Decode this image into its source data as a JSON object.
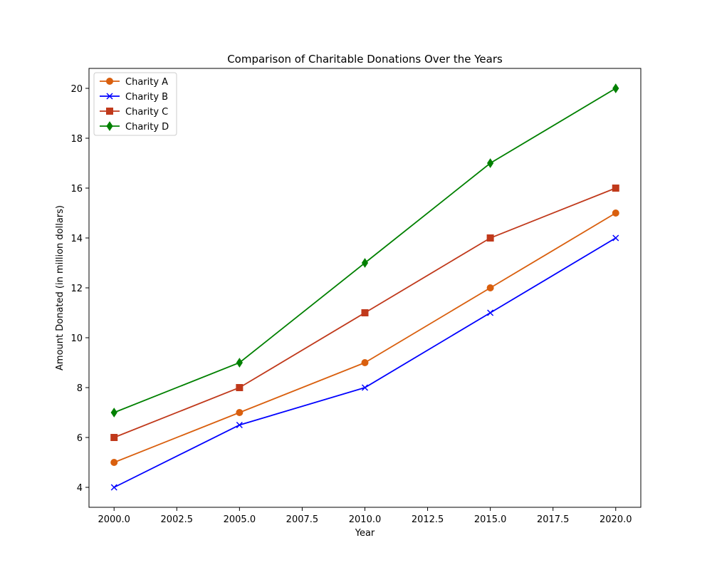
{
  "chart_data": {
    "type": "line",
    "title": "Comparison of Charitable Donations Over the Years",
    "xlabel": "Year",
    "ylabel": "Amount Donated (in million dollars)",
    "x": [
      2000,
      2005,
      2010,
      2015,
      2020
    ],
    "xlim": [
      1999.0,
      2021.0
    ],
    "ylim": [
      3.2,
      20.8
    ],
    "xticks": [
      2000.0,
      2002.5,
      2005.0,
      2007.5,
      2010.0,
      2012.5,
      2015.0,
      2017.5,
      2020.0
    ],
    "xtick_labels": [
      "2000.0",
      "2002.5",
      "2005.0",
      "2007.5",
      "2010.0",
      "2012.5",
      "2015.0",
      "2017.5",
      "2020.0"
    ],
    "yticks": [
      4,
      6,
      8,
      10,
      12,
      14,
      16,
      18,
      20
    ],
    "ytick_labels": [
      "4",
      "6",
      "8",
      "10",
      "12",
      "14",
      "16",
      "18",
      "20"
    ],
    "grid": false,
    "legend_position": "upper-left",
    "series": [
      {
        "name": "Charity A",
        "values": [
          5,
          7,
          9,
          12,
          15
        ],
        "color": "#d95f0e",
        "marker": "circle"
      },
      {
        "name": "Charity B",
        "values": [
          4,
          6.5,
          8,
          11,
          14
        ],
        "color": "#0000ff",
        "marker": "x"
      },
      {
        "name": "Charity C",
        "values": [
          6,
          8,
          11,
          14,
          16
        ],
        "color": "#c0391b",
        "marker": "square"
      },
      {
        "name": "Charity D",
        "values": [
          7,
          9,
          13,
          17,
          20
        ],
        "color": "#008000",
        "marker": "diamond"
      }
    ]
  }
}
